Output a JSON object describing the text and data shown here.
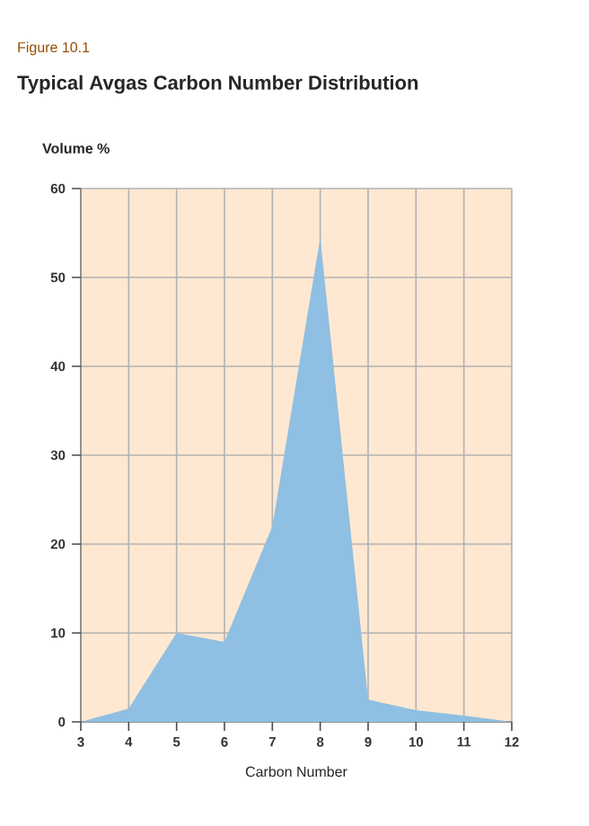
{
  "chart_data": {
    "type": "area",
    "title": "Typical Avgas Carbon Number Distribution",
    "annotations": [
      "Figure 10.1"
    ],
    "xlabel": "Carbon Number",
    "ylabel": "Volume %",
    "x": [
      3,
      4,
      5,
      6,
      7,
      8,
      9,
      10,
      11,
      12
    ],
    "series": [
      {
        "color": "#8fbfe2",
        "values": [
          0,
          1.5,
          10,
          9,
          22,
          54.5,
          2.5,
          1.3,
          0.7,
          0
        ]
      }
    ],
    "xlim": [
      3,
      12
    ],
    "ylim": [
      0,
      60
    ],
    "xticks": [
      3,
      4,
      5,
      6,
      7,
      8,
      9,
      10,
      11,
      12
    ],
    "yticks": [
      0,
      10,
      20,
      30,
      40,
      50,
      60
    ],
    "grid": true
  }
}
